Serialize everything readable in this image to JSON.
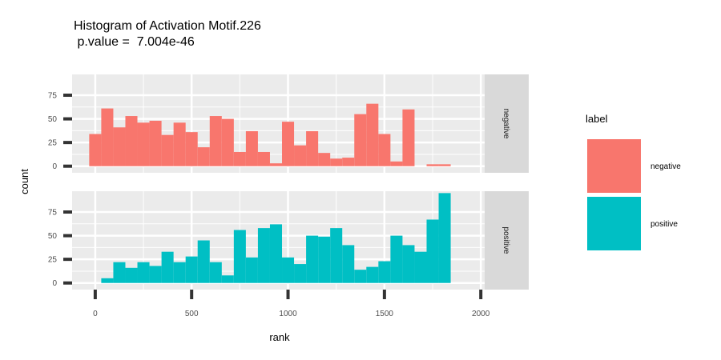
{
  "chart_data": {
    "type": "bar",
    "subtype": "faceted-histogram",
    "title": "Histogram of Activation Motif.226",
    "subtitle": " p.value =  7.004e-46",
    "xlabel": "rank",
    "ylabel": "count",
    "xlim": [
      -120,
      2020
    ],
    "xticks": [
      0,
      500,
      1000,
      1500,
      2000
    ],
    "ylim": [
      -7,
      97
    ],
    "yticks": [
      0,
      25,
      50,
      75
    ],
    "bin_width": 62.5,
    "legend": {
      "title": "label",
      "position": "right",
      "entries": [
        {
          "label": "negative",
          "color": "#F8766D"
        },
        {
          "label": "positive",
          "color": "#00BFC4"
        }
      ]
    },
    "series": [
      {
        "name": "negative",
        "color": "#F8766D",
        "bin_starts": [
          -31.25,
          31.25,
          93.75,
          156.25,
          218.75,
          281.25,
          343.75,
          406.25,
          468.75,
          531.25,
          593.75,
          656.25,
          718.75,
          781.25,
          843.75,
          906.25,
          968.75,
          1031.25,
          1093.75,
          1156.25,
          1218.75,
          1281.25,
          1343.75,
          1406.25,
          1468.75,
          1531.25,
          1593.75,
          1656.25,
          1718.75,
          1781.25,
          1843.75,
          1906.25
        ],
        "values": [
          34,
          61,
          41,
          53,
          46,
          48,
          33,
          46,
          36,
          20,
          53,
          50,
          15,
          37,
          15,
          3,
          47,
          22,
          37,
          14,
          8,
          9,
          55,
          66,
          34,
          5,
          60,
          0,
          2,
          2,
          0,
          0
        ]
      },
      {
        "name": "positive",
        "color": "#00BFC4",
        "bin_starts": [
          31.25,
          93.75,
          156.25,
          218.75,
          281.25,
          343.75,
          406.25,
          468.75,
          531.25,
          593.75,
          656.25,
          718.75,
          781.25,
          843.75,
          906.25,
          968.75,
          1031.25,
          1093.75,
          1156.25,
          1218.75,
          1281.25,
          1343.75,
          1406.25,
          1468.75,
          1531.25,
          1593.75,
          1656.25,
          1718.75,
          1781.25,
          1843.75,
          1906.25
        ],
        "values": [
          5,
          22,
          16,
          22,
          18,
          33,
          22,
          28,
          45,
          22,
          8,
          56,
          27,
          58,
          62,
          27,
          20,
          50,
          49,
          58,
          40,
          14,
          17,
          23,
          50,
          40,
          33,
          67,
          95,
          0,
          0
        ]
      }
    ]
  }
}
